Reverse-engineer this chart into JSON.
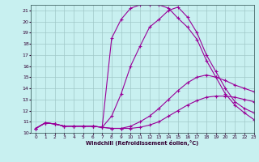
{
  "xlabel": "Windchill (Refroidissement éolien,°C)",
  "bg_color": "#c8f0f0",
  "line_color": "#990099",
  "grid_color": "#a0c8c8",
  "xlim": [
    -0.5,
    23
  ],
  "ylim": [
    10,
    21.5
  ],
  "xticks": [
    0,
    1,
    2,
    3,
    4,
    5,
    6,
    7,
    8,
    9,
    10,
    11,
    12,
    13,
    14,
    15,
    16,
    17,
    18,
    19,
    20,
    21,
    22,
    23
  ],
  "yticks": [
    10,
    11,
    12,
    13,
    14,
    15,
    16,
    17,
    18,
    19,
    20,
    21
  ],
  "line1_x": [
    0,
    1,
    2,
    3,
    4,
    5,
    6,
    7,
    8,
    9,
    10,
    11,
    12,
    13,
    14,
    15,
    16,
    17,
    18,
    19,
    20,
    21,
    22,
    23
  ],
  "line1_y": [
    10.4,
    10.9,
    10.8,
    10.6,
    10.6,
    10.6,
    10.6,
    10.5,
    10.4,
    10.4,
    10.4,
    10.5,
    10.7,
    11.0,
    11.5,
    12.0,
    12.5,
    12.9,
    13.2,
    13.3,
    13.3,
    13.2,
    13.0,
    12.8
  ],
  "line2_x": [
    0,
    1,
    2,
    3,
    4,
    5,
    6,
    7,
    8,
    9,
    10,
    11,
    12,
    13,
    14,
    15,
    16,
    17,
    18,
    19,
    20,
    21,
    22,
    23
  ],
  "line2_y": [
    10.4,
    10.9,
    10.8,
    10.6,
    10.6,
    10.6,
    10.6,
    10.5,
    10.4,
    10.4,
    10.6,
    11.0,
    11.5,
    12.2,
    13.0,
    13.8,
    14.5,
    15.0,
    15.2,
    15.0,
    14.7,
    14.3,
    14.0,
    13.7
  ],
  "line3_x": [
    0,
    1,
    2,
    3,
    4,
    5,
    6,
    7,
    8,
    9,
    10,
    11,
    12,
    13,
    14,
    15,
    16,
    17,
    18,
    19,
    20,
    21,
    22,
    23
  ],
  "line3_y": [
    10.4,
    10.9,
    10.8,
    10.6,
    10.6,
    10.6,
    10.6,
    10.5,
    11.5,
    13.5,
    16.0,
    17.8,
    19.5,
    20.2,
    21.0,
    21.3,
    20.4,
    19.0,
    17.0,
    15.5,
    14.0,
    12.8,
    12.2,
    11.8
  ],
  "line4_x": [
    0,
    1,
    2,
    3,
    4,
    5,
    6,
    7,
    8,
    9,
    10,
    11,
    12,
    13,
    14,
    15,
    16,
    17,
    18,
    19,
    20,
    21,
    22,
    23
  ],
  "line4_y": [
    10.4,
    10.9,
    10.8,
    10.6,
    10.6,
    10.6,
    10.6,
    10.5,
    18.5,
    20.2,
    21.2,
    21.5,
    21.5,
    21.5,
    21.2,
    20.3,
    19.5,
    18.4,
    16.5,
    15.0,
    13.5,
    12.5,
    11.8,
    11.2
  ]
}
